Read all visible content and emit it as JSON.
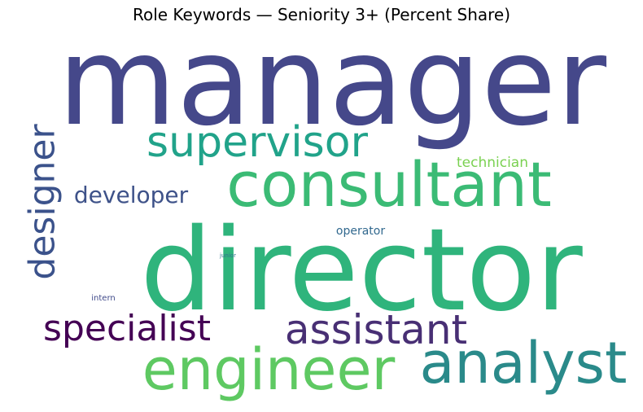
{
  "chart_data": {
    "type": "wordcloud",
    "title": "Role Keywords — Seniority 3+ (Percent Share)",
    "words": [
      {
        "text": "manager",
        "weight": 100,
        "color": "#45488a"
      },
      {
        "text": "director",
        "weight": 93,
        "color": "#2fb47c"
      },
      {
        "text": "consultant",
        "weight": 58,
        "color": "#3bbb75"
      },
      {
        "text": "engineer",
        "weight": 55,
        "color": "#5ec962"
      },
      {
        "text": "analyst",
        "weight": 52,
        "color": "#2a8a8a"
      },
      {
        "text": "assistant",
        "weight": 38,
        "color": "#482f74"
      },
      {
        "text": "supervisor",
        "weight": 38,
        "color": "#21a38a"
      },
      {
        "text": "specialist",
        "weight": 34,
        "color": "#440154"
      },
      {
        "text": "designer",
        "weight": 32,
        "color": "#3b528b"
      },
      {
        "text": "developer",
        "weight": 22,
        "color": "#3e5289"
      },
      {
        "text": "technician",
        "weight": 13,
        "color": "#7ad151"
      },
      {
        "text": "operator",
        "weight": 11,
        "color": "#31688e"
      },
      {
        "text": "intern",
        "weight": 8,
        "color": "#404a8a"
      },
      {
        "text": "junior",
        "weight": 6,
        "color": "#31728e"
      }
    ]
  }
}
